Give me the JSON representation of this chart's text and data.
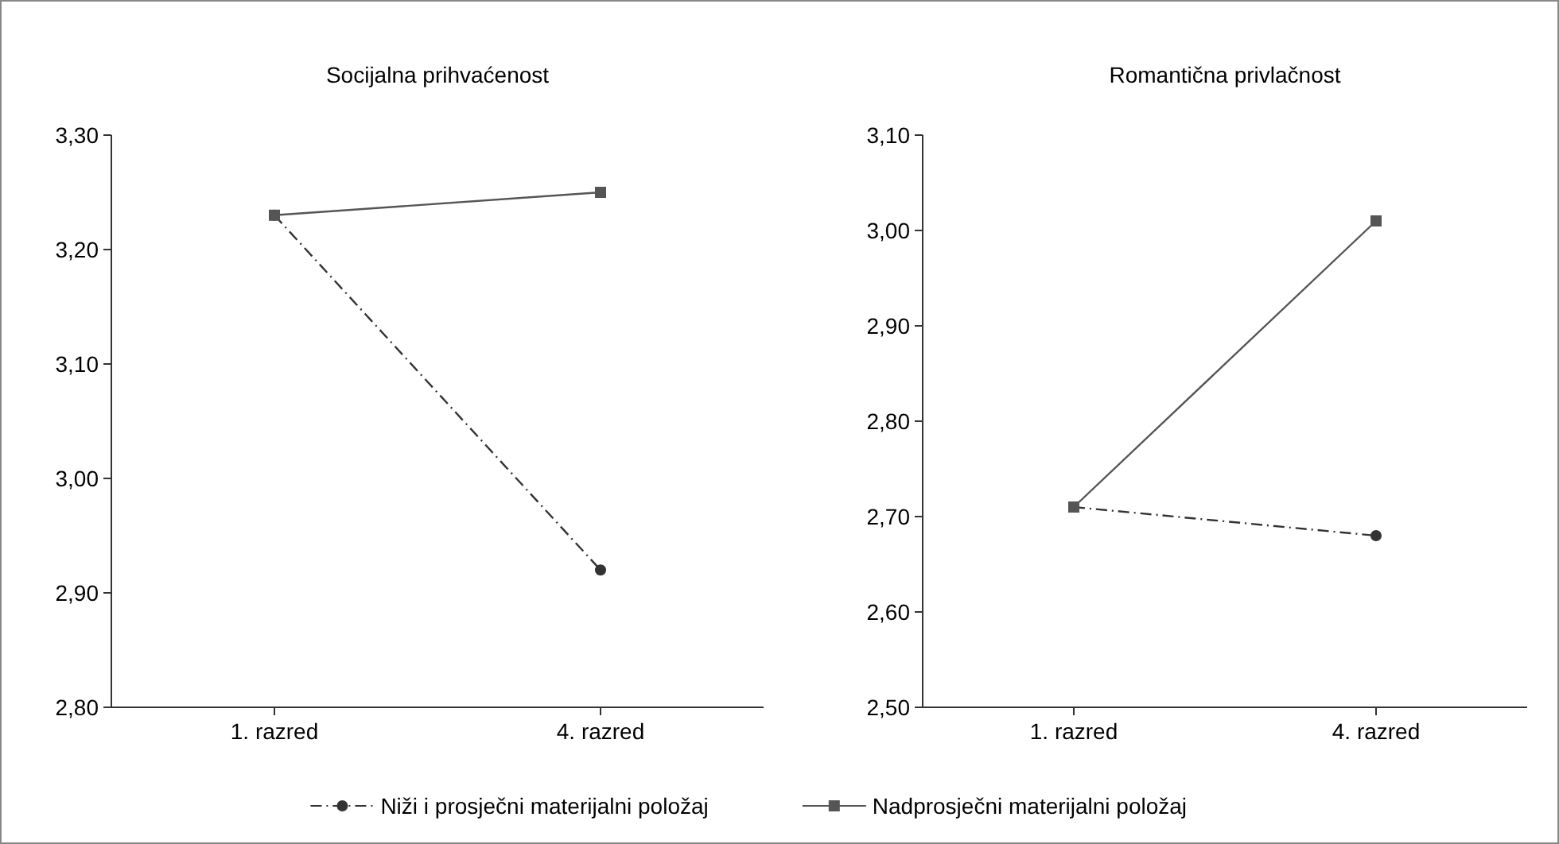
{
  "chart_data": [
    {
      "type": "line",
      "title": "Socijalna prihvaćenost",
      "categories": [
        "1. razred",
        "4. razred"
      ],
      "ylim": [
        2.8,
        3.3
      ],
      "yticks": [
        {
          "value": 2.8,
          "label": "2,80"
        },
        {
          "value": 2.9,
          "label": "2,90"
        },
        {
          "value": 3.0,
          "label": "3,00"
        },
        {
          "value": 3.1,
          "label": "3,10"
        },
        {
          "value": 3.2,
          "label": "3,20"
        },
        {
          "value": 3.3,
          "label": "3,30"
        }
      ],
      "legend": "bottom",
      "series": [
        {
          "name": "Niži i prosječni materijalni položaj",
          "color": "#333333",
          "values": [
            3.23,
            2.92
          ],
          "marker": "circle",
          "line_style": "dashdot"
        },
        {
          "name": "Nadprosječni materijalni položaj",
          "color": "#555555",
          "values": [
            3.23,
            3.25
          ],
          "marker": "square",
          "line_style": "solid"
        }
      ]
    },
    {
      "type": "line",
      "title": "Romantična privlačnost",
      "categories": [
        "1. razred",
        "4. razred"
      ],
      "ylim": [
        2.5,
        3.1
      ],
      "yticks": [
        {
          "value": 2.5,
          "label": "2,50"
        },
        {
          "value": 2.6,
          "label": "2,60"
        },
        {
          "value": 2.7,
          "label": "2,70"
        },
        {
          "value": 2.8,
          "label": "2,80"
        },
        {
          "value": 2.9,
          "label": "2,90"
        },
        {
          "value": 3.0,
          "label": "3,00"
        },
        {
          "value": 3.1,
          "label": "3,10"
        }
      ],
      "series": [
        {
          "name": "Niži i prosječni materijalni položaj",
          "color": "#333333",
          "values": [
            2.71,
            2.68
          ],
          "marker": "circle",
          "line_style": "dashdot"
        },
        {
          "name": "Nadprosječni materijalni položaj",
          "color": "#555555",
          "values": [
            2.71,
            3.01
          ],
          "marker": "square",
          "line_style": "solid"
        }
      ]
    }
  ]
}
